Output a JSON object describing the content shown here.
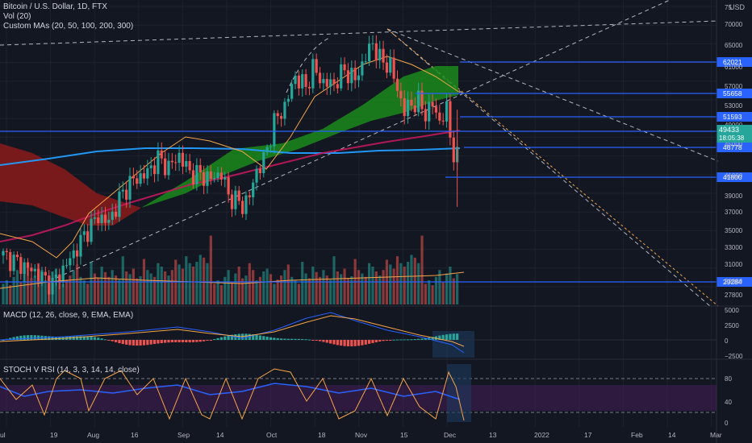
{
  "header": {
    "symbol_line": "Bitcoin / U.S. Dollar, 1D, FTX",
    "volume_line": "Vol (20)",
    "ma_line": "Custom MAs (20, 50, 100, 200, 300)",
    "currency": "USD"
  },
  "indicators": {
    "macd_label": "MACD (12, 26, close, 9, EMA, EMA)",
    "stoch_label": "STOCH V RSI (14, 3, 3, 14, 14, close)"
  },
  "colors": {
    "background": "#131722",
    "grid": "#1e222d",
    "up": "#26a69a",
    "down": "#ef5350",
    "level_line": "#2962ff",
    "ma_blue": "#2196f3",
    "ma_red": "#c2185b",
    "band_green": "#1b8a1b",
    "band_red": "#8b1a1a",
    "orange": "#f5a54a"
  },
  "chart_data": {
    "type": "candlestick",
    "title": "Bitcoin / U.S. Dollar, 1D, FTX",
    "x_tick_labels": [
      "ul",
      "19",
      "Aug",
      "16",
      "Sep",
      "14",
      "Oct",
      "18",
      "Nov",
      "15",
      "Dec",
      "13",
      "2022",
      "17",
      "Feb",
      "14",
      "Mar"
    ],
    "y_tick_labels": [
      "75",
      "70000",
      "65000",
      "61000",
      "57000",
      "53000",
      "49000",
      "45000",
      "41000",
      "39000",
      "37000",
      "35000",
      "33000",
      "31000",
      "29000",
      "27800"
    ],
    "price_levels": [
      {
        "label": "62021",
        "value": 62021
      },
      {
        "label": "55658",
        "value": 55658
      },
      {
        "label": "51593",
        "value": 51593
      },
      {
        "label": "48867",
        "value": 48867
      },
      {
        "label": "46778",
        "value": 46778
      },
      {
        "label": "41800",
        "value": 41800
      },
      {
        "label": "29284",
        "value": 29284
      }
    ],
    "last_price": {
      "label": "49433",
      "countdown": "18:05:38",
      "value": 49433
    },
    "price_path": [
      [
        0,
        34200
      ],
      [
        5,
        32800
      ],
      [
        9,
        31600
      ],
      [
        12,
        30300
      ],
      [
        14,
        29700
      ],
      [
        17,
        32000
      ],
      [
        20,
        34500
      ],
      [
        24,
        38200
      ],
      [
        27,
        40300
      ],
      [
        30,
        39400
      ],
      [
        33,
        43000
      ],
      [
        36,
        45600
      ],
      [
        38,
        46200
      ],
      [
        41,
        47200
      ],
      [
        44,
        49300
      ],
      [
        47,
        48000
      ],
      [
        50,
        49800
      ],
      [
        53,
        47200
      ],
      [
        56,
        46800
      ],
      [
        59,
        46200
      ],
      [
        62,
        47100
      ],
      [
        64,
        43500
      ],
      [
        66,
        42900
      ],
      [
        68,
        42000
      ],
      [
        70,
        43500
      ],
      [
        72,
        47500
      ],
      [
        74,
        49000
      ],
      [
        77,
        55000
      ],
      [
        80,
        57500
      ],
      [
        83,
        62200
      ],
      [
        86,
        60500
      ],
      [
        88,
        63500
      ],
      [
        91,
        61200
      ],
      [
        94,
        61000
      ],
      [
        97,
        63200
      ],
      [
        100,
        61700
      ],
      [
        102,
        64100
      ],
      [
        105,
        67500
      ],
      [
        107,
        64800
      ],
      [
        110,
        63900
      ],
      [
        112,
        60200
      ],
      [
        114,
        56800
      ],
      [
        116,
        57900
      ],
      [
        118,
        58200
      ],
      [
        120,
        56400
      ],
      [
        122,
        57800
      ],
      [
        124,
        55200
      ],
      [
        126,
        56900
      ],
      [
        127,
        53000
      ],
      [
        128,
        50200
      ],
      [
        129,
        49433
      ]
    ],
    "volume_series": [
      0.3,
      0.35,
      0.28,
      0.4,
      0.5,
      0.32,
      0.45,
      0.55,
      0.38,
      0.42,
      0.6,
      0.5,
      0.35,
      0.4,
      0.48,
      0.52,
      0.44,
      0.3,
      0.36,
      0.42,
      0.5,
      0.58,
      0.4,
      0.35,
      0.3,
      0.62,
      0.45,
      0.38,
      0.55,
      0.47,
      0.4,
      0.5,
      0.42,
      0.36,
      0.7,
      0.48,
      0.44,
      0.52,
      0.38,
      0.41,
      0.66,
      0.5,
      0.45,
      0.4,
      0.6,
      0.55,
      0.48,
      0.42,
      0.5,
      0.65,
      0.58,
      0.52,
      0.7,
      0.6,
      0.55,
      0.62,
      0.72,
      0.68,
      0.6,
      1.0
    ],
    "macd_ticks": [
      "5000",
      "2500",
      "0",
      "−2500"
    ],
    "stoch_ticks": [
      "80",
      "40",
      "0"
    ]
  }
}
